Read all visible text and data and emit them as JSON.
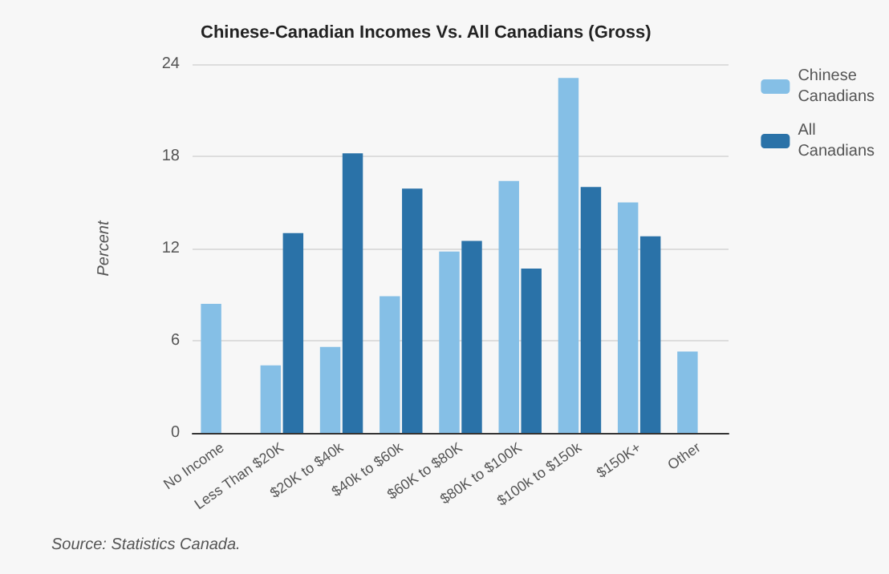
{
  "chart_data": {
    "type": "bar",
    "title": "Chinese-Canadian Incomes Vs. All Canadians (Gross)",
    "ylabel": "Percent",
    "categories": [
      "No Income",
      "Less Than $20K",
      "$20K to $40k",
      "$40k to $60k",
      "$60K to $80K",
      "$80K to $100K",
      "$100k to $150k",
      "$150K+",
      "Other"
    ],
    "series": [
      {
        "name": "Chinese Canadians",
        "color": "#85bfe6",
        "values": [
          8.4,
          4.4,
          5.6,
          8.9,
          11.8,
          16.4,
          23.1,
          15.0,
          5.3
        ]
      },
      {
        "name": "All Canadians",
        "color": "#2a72a8",
        "values": [
          null,
          13.0,
          18.2,
          15.9,
          12.5,
          10.7,
          16.0,
          12.8,
          null
        ]
      }
    ],
    "ylim": [
      0,
      24
    ],
    "yticks": [
      0,
      6,
      12,
      18,
      24
    ],
    "grid": "y",
    "legend": "top right",
    "annotations": [
      "Source: Statistics Canada."
    ]
  }
}
